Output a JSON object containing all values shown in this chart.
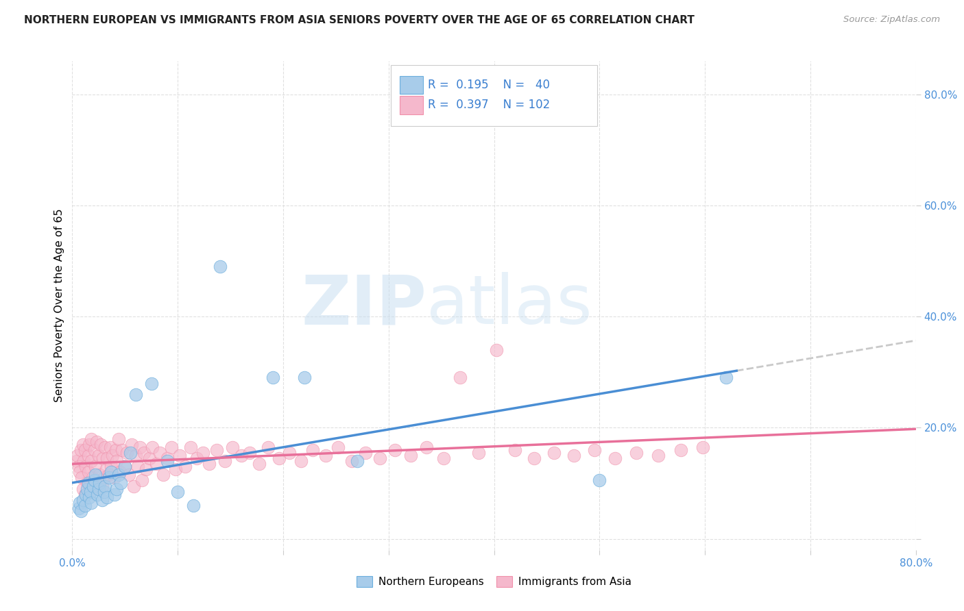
{
  "title": "NORTHERN EUROPEAN VS IMMIGRANTS FROM ASIA SENIORS POVERTY OVER THE AGE OF 65 CORRELATION CHART",
  "source": "Source: ZipAtlas.com",
  "ylabel": "Seniors Poverty Over the Age of 65",
  "xlim": [
    0.0,
    0.8
  ],
  "ylim": [
    -0.02,
    0.86
  ],
  "blue_fill": "#A8CCEA",
  "blue_edge": "#6AAEDD",
  "pink_fill": "#F5B8CC",
  "pink_edge": "#F090AA",
  "blue_line": "#4A8ED4",
  "pink_line": "#E8709A",
  "gray_dash": "#C0C0C0",
  "legend_text_color": "#3A7FD0",
  "title_color": "#222222",
  "source_color": "#999999",
  "grid_color": "#E0E0E0",
  "tick_color": "#4A90D9",
  "R_blue": "0.195",
  "N_blue": "40",
  "R_pink": "0.397",
  "N_pink": "102",
  "ne_x": [
    0.006,
    0.007,
    0.008,
    0.01,
    0.012,
    0.013,
    0.014,
    0.015,
    0.016,
    0.017,
    0.018,
    0.02,
    0.021,
    0.022,
    0.024,
    0.025,
    0.026,
    0.028,
    0.03,
    0.031,
    0.033,
    0.035,
    0.037,
    0.04,
    0.042,
    0.044,
    0.046,
    0.05,
    0.055,
    0.06,
    0.075,
    0.09,
    0.1,
    0.115,
    0.14,
    0.19,
    0.22,
    0.27,
    0.5,
    0.62
  ],
  "ne_y": [
    0.055,
    0.065,
    0.05,
    0.07,
    0.06,
    0.08,
    0.09,
    0.1,
    0.075,
    0.085,
    0.065,
    0.095,
    0.105,
    0.115,
    0.08,
    0.09,
    0.1,
    0.07,
    0.085,
    0.095,
    0.075,
    0.11,
    0.12,
    0.08,
    0.09,
    0.115,
    0.1,
    0.13,
    0.155,
    0.26,
    0.28,
    0.14,
    0.085,
    0.06,
    0.49,
    0.29,
    0.29,
    0.14,
    0.105,
    0.29
  ],
  "ia_x": [
    0.004,
    0.005,
    0.006,
    0.007,
    0.008,
    0.009,
    0.01,
    0.01,
    0.011,
    0.012,
    0.012,
    0.013,
    0.014,
    0.015,
    0.015,
    0.016,
    0.017,
    0.018,
    0.018,
    0.019,
    0.02,
    0.021,
    0.022,
    0.023,
    0.024,
    0.025,
    0.026,
    0.027,
    0.028,
    0.029,
    0.03,
    0.031,
    0.032,
    0.033,
    0.035,
    0.036,
    0.037,
    0.038,
    0.04,
    0.041,
    0.042,
    0.044,
    0.045,
    0.047,
    0.05,
    0.052,
    0.054,
    0.056,
    0.058,
    0.06,
    0.062,
    0.064,
    0.066,
    0.068,
    0.07,
    0.073,
    0.076,
    0.08,
    0.083,
    0.086,
    0.09,
    0.094,
    0.098,
    0.102,
    0.107,
    0.112,
    0.118,
    0.124,
    0.13,
    0.137,
    0.145,
    0.152,
    0.16,
    0.168,
    0.177,
    0.186,
    0.196,
    0.206,
    0.217,
    0.228,
    0.24,
    0.252,
    0.265,
    0.278,
    0.292,
    0.306,
    0.321,
    0.336,
    0.352,
    0.368,
    0.385,
    0.402,
    0.42,
    0.438,
    0.457,
    0.476,
    0.495,
    0.515,
    0.535,
    0.556,
    0.577,
    0.598
  ],
  "ia_y": [
    0.14,
    0.15,
    0.13,
    0.12,
    0.16,
    0.11,
    0.09,
    0.17,
    0.14,
    0.08,
    0.16,
    0.13,
    0.1,
    0.15,
    0.12,
    0.17,
    0.09,
    0.14,
    0.18,
    0.11,
    0.1,
    0.16,
    0.13,
    0.175,
    0.09,
    0.15,
    0.115,
    0.17,
    0.095,
    0.145,
    0.11,
    0.165,
    0.125,
    0.145,
    0.115,
    0.165,
    0.13,
    0.15,
    0.11,
    0.16,
    0.14,
    0.18,
    0.12,
    0.16,
    0.13,
    0.155,
    0.115,
    0.17,
    0.095,
    0.15,
    0.13,
    0.165,
    0.105,
    0.155,
    0.125,
    0.145,
    0.165,
    0.135,
    0.155,
    0.115,
    0.145,
    0.165,
    0.125,
    0.15,
    0.13,
    0.165,
    0.145,
    0.155,
    0.135,
    0.16,
    0.14,
    0.165,
    0.15,
    0.155,
    0.135,
    0.165,
    0.145,
    0.155,
    0.14,
    0.16,
    0.15,
    0.165,
    0.14,
    0.155,
    0.145,
    0.16,
    0.15,
    0.165,
    0.145,
    0.29,
    0.155,
    0.34,
    0.16,
    0.145,
    0.155,
    0.15,
    0.16,
    0.145,
    0.155,
    0.15,
    0.16,
    0.165
  ]
}
